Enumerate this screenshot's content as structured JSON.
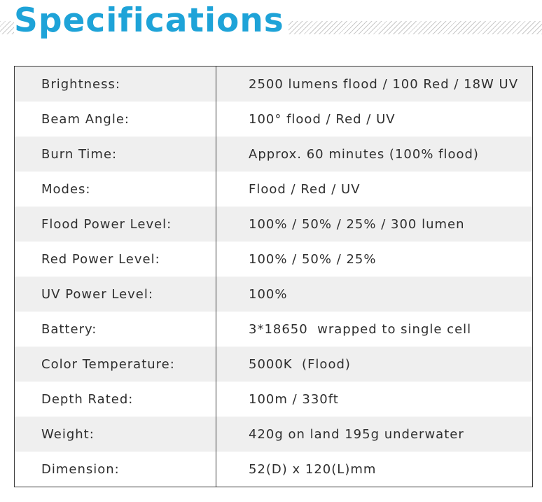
{
  "header": {
    "title": "Specifications"
  },
  "specs": [
    {
      "label": "Brightness:",
      "value": "2500 lumens flood / 100 Red / 18W UV"
    },
    {
      "label": "Beam Angle:",
      "value": "100° flood / Red / UV"
    },
    {
      "label": "Burn Time:",
      "value": "Approx. 60 minutes (100% flood)"
    },
    {
      "label": "Modes:",
      "value": "Flood / Red / UV"
    },
    {
      "label": "Flood Power Level:",
      "value": "100% / 50% / 25% / 300 lumen"
    },
    {
      "label": "Red Power Level:",
      "value": "100% / 50% / 25%"
    },
    {
      "label": "UV Power Level:",
      "value": "100%"
    },
    {
      "label": "Battery:",
      "value": "3*18650  wrapped to single cell"
    },
    {
      "label": "Color Temperature:",
      "value": "5000K  (Flood)"
    },
    {
      "label": "Depth Rated:",
      "value": "100m / 330ft"
    },
    {
      "label": "Weight:",
      "value": "420g on land 195g underwater"
    },
    {
      "label": "Dimension:",
      "value": "52(D) x 120(L)mm"
    }
  ],
  "colors": {
    "title": "#1ea3d8",
    "row_shaded": "#efefef",
    "border": "#3b3b3b"
  }
}
